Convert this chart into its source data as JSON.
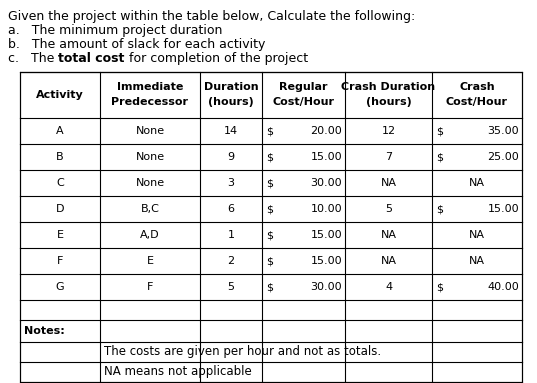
{
  "title_line1": "Given the project within the table below, Calculate the following:",
  "bullet_a": "a.   The minimum project duration",
  "bullet_b": "b.   The amount of slack for each activity",
  "bullet_c_pre": "c.   The ",
  "bullet_c_bold": "total cost",
  "bullet_c_post": " for completion of the project",
  "header_row1": [
    "Activity",
    "Immediate",
    "Duration",
    "Regular",
    "Crash Duration",
    "Crash"
  ],
  "header_row2": [
    "",
    "Predecessor",
    "(hours)",
    "Cost/Hour",
    "(hours)",
    "Cost/Hour"
  ],
  "data_rows": [
    [
      "A",
      "None",
      "14",
      "$ 20.00",
      "12",
      "$ 35.00"
    ],
    [
      "B",
      "None",
      "9",
      "$ 15.00",
      "7",
      "$ 25.00"
    ],
    [
      "C",
      "None",
      "3",
      "$ 30.00",
      "NA",
      "NA"
    ],
    [
      "D",
      "B,C",
      "6",
      "$ 10.00",
      "5",
      "$ 15.00"
    ],
    [
      "E",
      "A,D",
      "1",
      "$ 15.00",
      "NA",
      "NA"
    ],
    [
      "F",
      "E",
      "2",
      "$ 15.00",
      "NA",
      "NA"
    ],
    [
      "G",
      "F",
      "5",
      "$ 30.00",
      "4",
      "$ 40.00"
    ]
  ],
  "notes_label": "Notes:",
  "notes": [
    "The costs are given per hour and not as totals.",
    "NA means not applicable"
  ],
  "bg_color": "#ffffff",
  "border_color": "#000000",
  "text_color": "#000000",
  "fontsize_title": 9.0,
  "fontsize_header": 8.0,
  "fontsize_data": 8.0,
  "fontsize_notes": 8.5
}
